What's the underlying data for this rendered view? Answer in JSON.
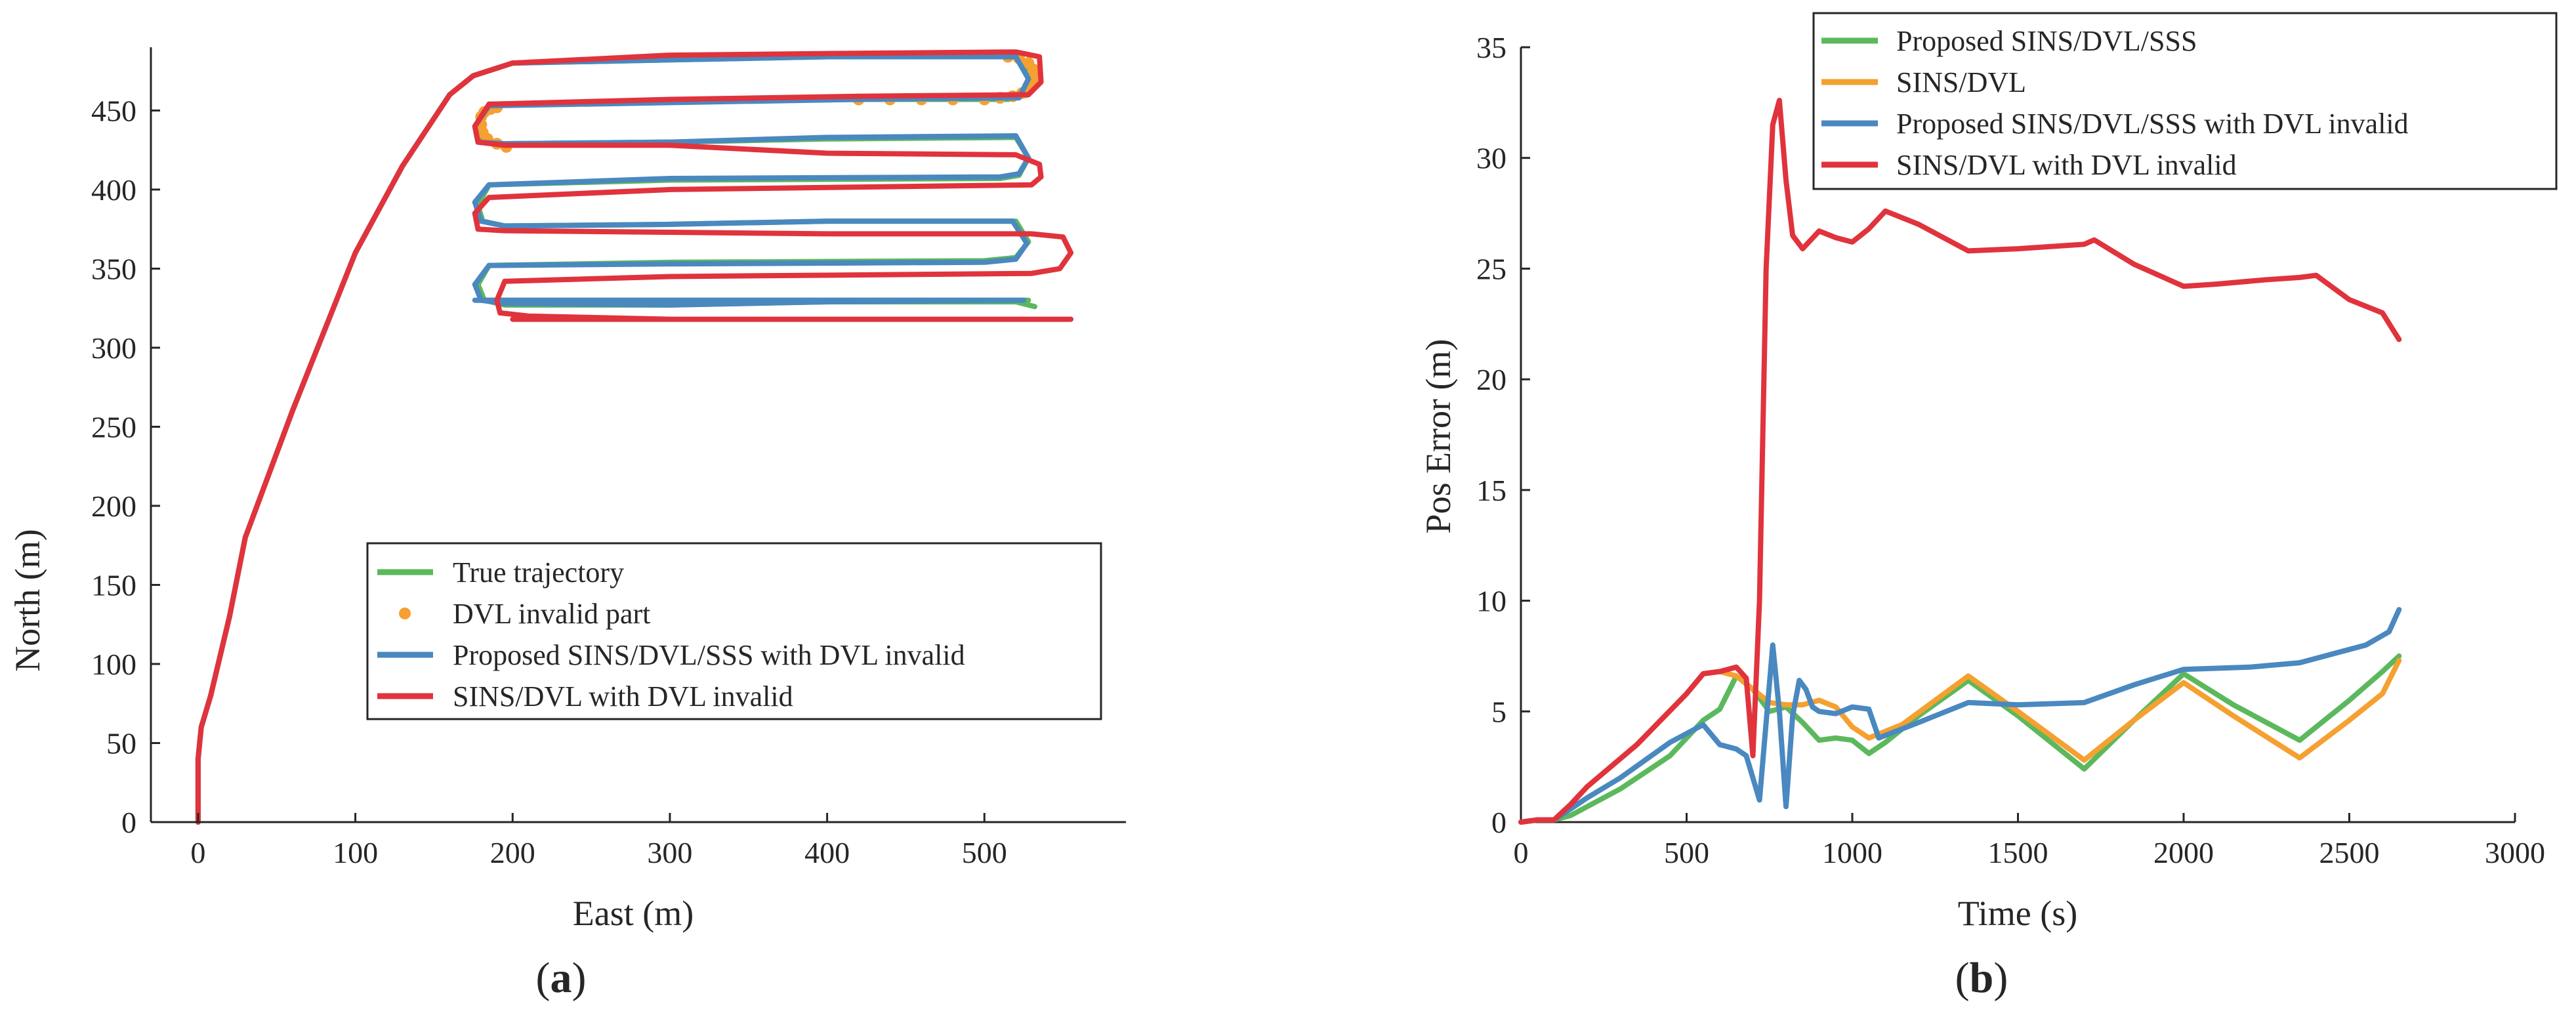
{
  "colors": {
    "true_trajectory": "#5cb85c",
    "dvl_invalid": "#f5a030",
    "proposed_invalid": "#4a88c0",
    "sins_dvl_invalid": "#e0333c",
    "proposed": "#5cb85c",
    "sins_dvl": "#f5a030",
    "axis": "#262626"
  },
  "panels": {
    "a": {
      "prefix": "(",
      "letter": "a",
      "suffix": ")"
    },
    "b": {
      "prefix": "(",
      "letter": "b",
      "suffix": ")"
    }
  },
  "chart_data": [
    {
      "id": "a",
      "type": "line",
      "title": "",
      "xlabel": "East (m)",
      "ylabel": "North (m)",
      "xlim": [
        -30,
        590
      ],
      "ylim": [
        0,
        490
      ],
      "xticks": [
        0,
        100,
        200,
        300,
        400,
        500
      ],
      "yticks": [
        0,
        50,
        100,
        150,
        200,
        250,
        300,
        350,
        400,
        450
      ],
      "legend_position": "lower-right",
      "legend": [
        {
          "label": "True trajectory",
          "style": "line",
          "colorKey": "true_trajectory"
        },
        {
          "label": "DVL invalid part",
          "style": "dot",
          "colorKey": "dvl_invalid"
        },
        {
          "label": "Proposed SINS/DVL/SSS with DVL invalid",
          "style": "line",
          "colorKey": "proposed_invalid"
        },
        {
          "label": "SINS/DVL with DVL invalid",
          "style": "line",
          "colorKey": "sins_dvl_invalid"
        }
      ],
      "series": [
        {
          "name": "True trajectory",
          "colorKey": "true_trajectory",
          "x": [
            0,
            0,
            2,
            8,
            20,
            30,
            60,
            100,
            130,
            160,
            175,
            200,
            300,
            400,
            520,
            530,
            528,
            515,
            420,
            300,
            185,
            178,
            180,
            195,
            300,
            400,
            520,
            528,
            522,
            510,
            300,
            185,
            178,
            181,
            195,
            300,
            400,
            520,
            528,
            520,
            500,
            300,
            185,
            178,
            182,
            195,
            300,
            400,
            520,
            528,
            520,
            500,
            300,
            185,
            178,
            182,
            195,
            300,
            400,
            520,
            532
          ],
          "y": [
            0,
            40,
            60,
            80,
            130,
            180,
            260,
            360,
            415,
            460,
            472,
            480,
            482,
            484,
            484,
            472,
            460,
            457,
            457,
            456,
            454,
            440,
            430,
            429,
            430,
            432,
            433,
            420,
            409,
            407,
            406,
            403,
            390,
            380,
            377,
            378,
            380,
            380,
            367,
            357,
            355,
            354,
            352,
            340,
            330,
            327,
            327,
            329,
            330,
            330,
            330,
            330,
            330,
            330,
            330,
            330,
            330,
            330,
            329,
            329,
            326
          ]
        },
        {
          "name": "DVL invalid part",
          "colorKey": "dvl_invalid",
          "style": "dots",
          "x": [
            420,
            440,
            460,
            480,
            500,
            510,
            518,
            524,
            528,
            531,
            532,
            531,
            528,
            522,
            515,
            190,
            186,
            182,
            180,
            180,
            181,
            184,
            190,
            196
          ],
          "y": [
            457,
            457,
            457,
            457,
            457,
            458,
            459,
            461,
            464,
            468,
            472,
            476,
            480,
            483,
            484,
            452,
            451,
            449,
            446,
            441,
            436,
            432,
            429,
            427
          ]
        },
        {
          "name": "Proposed SINS/DVL/SSS with DVL invalid",
          "colorKey": "proposed_invalid",
          "x": [
            0,
            0,
            2,
            8,
            20,
            30,
            60,
            100,
            130,
            160,
            175,
            200,
            300,
            400,
            520,
            528,
            522,
            420,
            300,
            185,
            176,
            178,
            195,
            300,
            400,
            520,
            528,
            522,
            510,
            300,
            185,
            176,
            180,
            195,
            300,
            400,
            518,
            527,
            520,
            500,
            300,
            185,
            176,
            180,
            195,
            300,
            400,
            515,
            525,
            520,
            500,
            300,
            185,
            176,
            180,
            195,
            300,
            400,
            515,
            525
          ],
          "y": [
            0,
            40,
            60,
            80,
            130,
            180,
            260,
            360,
            415,
            460,
            472,
            480,
            482,
            484,
            484,
            470,
            458,
            457,
            455,
            453,
            440,
            430,
            429,
            430,
            433,
            434,
            420,
            410,
            408,
            407,
            403,
            392,
            380,
            377,
            378,
            380,
            380,
            366,
            356,
            354,
            353,
            352,
            340,
            330,
            328,
            327,
            329,
            330,
            330,
            330,
            330,
            330,
            330,
            330,
            330,
            330,
            329,
            329,
            330,
            330
          ]
        },
        {
          "name": "SINS/DVL with DVL invalid",
          "colorKey": "sins_dvl_invalid",
          "x": [
            0,
            0,
            2,
            8,
            20,
            30,
            60,
            100,
            130,
            160,
            175,
            200,
            300,
            400,
            520,
            535,
            536,
            528,
            420,
            300,
            185,
            176,
            178,
            195,
            300,
            400,
            520,
            535,
            536,
            530,
            300,
            185,
            176,
            178,
            195,
            300,
            400,
            530,
            550,
            555,
            548,
            530,
            300,
            195,
            190,
            192,
            210,
            300,
            400,
            530,
            552,
            555,
            548,
            300,
            205,
            200,
            205,
            230,
            300,
            400,
            530,
            545
          ],
          "y": [
            0,
            40,
            60,
            80,
            130,
            180,
            260,
            360,
            415,
            460,
            472,
            480,
            485,
            486,
            487,
            484,
            468,
            460,
            459,
            457,
            454,
            440,
            430,
            428,
            428,
            423,
            422,
            416,
            408,
            403,
            400,
            395,
            385,
            375,
            374,
            373,
            372,
            372,
            370,
            360,
            350,
            347,
            345,
            342,
            330,
            322,
            320,
            318,
            318,
            318,
            318,
            318,
            318,
            318,
            318,
            318,
            318,
            318,
            318,
            318,
            318,
            318
          ]
        }
      ]
    },
    {
      "id": "b",
      "type": "line",
      "title": "",
      "xlabel": "Time (s)",
      "ylabel": "Pos Error (m)",
      "xlim": [
        0,
        3000
      ],
      "ylim": [
        0,
        35
      ],
      "xticks": [
        0,
        500,
        1000,
        1500,
        2000,
        2500,
        3000
      ],
      "yticks": [
        0,
        5,
        10,
        15,
        20,
        25,
        30,
        35
      ],
      "legend_position": "top-right",
      "legend": [
        {
          "label": "Proposed SINS/DVL/SSS",
          "style": "line",
          "colorKey": "proposed"
        },
        {
          "label": "SINS/DVL",
          "style": "line",
          "colorKey": "sins_dvl"
        },
        {
          "label": "Proposed SINS/DVL/SSS with DVL invalid",
          "style": "line",
          "colorKey": "proposed_invalid"
        },
        {
          "label": "SINS/DVL with DVL invalid",
          "style": "line",
          "colorKey": "sins_dvl_invalid"
        }
      ],
      "series": [
        {
          "name": "Proposed SINS/DVL/SSS",
          "colorKey": "proposed",
          "x": [
            0,
            50,
            100,
            150,
            200,
            300,
            450,
            550,
            600,
            650,
            700,
            750,
            800,
            850,
            900,
            950,
            1000,
            1050,
            1100,
            1200,
            1350,
            1500,
            1700,
            1850,
            2000,
            2150,
            2350,
            2500,
            2600,
            2650
          ],
          "y": [
            0,
            0.1,
            0.1,
            0.3,
            0.7,
            1.5,
            3.0,
            4.6,
            5.1,
            6.6,
            6.0,
            5.0,
            5.2,
            4.5,
            3.7,
            3.8,
            3.7,
            3.1,
            3.6,
            4.8,
            6.4,
            4.8,
            2.4,
            4.6,
            6.7,
            5.3,
            3.7,
            5.5,
            6.8,
            7.5
          ]
        },
        {
          "name": "SINS/DVL",
          "colorKey": "sins_dvl",
          "x": [
            0,
            50,
            100,
            150,
            200,
            350,
            500,
            550,
            600,
            650,
            700,
            750,
            800,
            850,
            900,
            950,
            1000,
            1050,
            1150,
            1350,
            1500,
            1700,
            1850,
            2000,
            2150,
            2350,
            2500,
            2600,
            2650
          ],
          "y": [
            0,
            0.1,
            0.1,
            0.8,
            1.6,
            3.5,
            5.8,
            6.7,
            6.8,
            6.6,
            6.0,
            5.4,
            5.3,
            5.3,
            5.5,
            5.2,
            4.3,
            3.8,
            4.4,
            6.6,
            5.0,
            2.8,
            4.6,
            6.3,
            4.8,
            2.9,
            4.6,
            5.8,
            7.3
          ]
        },
        {
          "name": "Proposed SINS/DVL/SSS with DVL invalid",
          "colorKey": "proposed_invalid",
          "x": [
            0,
            50,
            100,
            150,
            200,
            300,
            450,
            550,
            600,
            650,
            680,
            700,
            720,
            740,
            760,
            780,
            800,
            820,
            840,
            860,
            880,
            900,
            950,
            1000,
            1050,
            1080,
            1200,
            1350,
            1500,
            1700,
            1850,
            2000,
            2200,
            2350,
            2450,
            2550,
            2620,
            2650
          ],
          "y": [
            0,
            0.1,
            0.1,
            0.6,
            1.1,
            2.0,
            3.6,
            4.4,
            3.5,
            3.3,
            3.0,
            2.0,
            1.0,
            4.5,
            8.0,
            5.0,
            0.7,
            4.8,
            6.4,
            6.0,
            5.2,
            5.0,
            4.9,
            5.2,
            5.1,
            3.8,
            4.5,
            5.4,
            5.3,
            5.4,
            6.2,
            6.9,
            7.0,
            7.2,
            7.6,
            8.0,
            8.6,
            9.6
          ]
        },
        {
          "name": "SINS/DVL with DVL invalid",
          "colorKey": "sins_dvl_invalid",
          "x": [
            0,
            50,
            100,
            150,
            200,
            350,
            500,
            550,
            600,
            650,
            680,
            700,
            720,
            740,
            760,
            780,
            800,
            820,
            850,
            900,
            950,
            1000,
            1050,
            1100,
            1200,
            1350,
            1500,
            1700,
            1730,
            1850,
            2000,
            2100,
            2250,
            2350,
            2400,
            2500,
            2600,
            2650
          ],
          "y": [
            0,
            0.1,
            0.1,
            0.8,
            1.6,
            3.5,
            5.8,
            6.7,
            6.8,
            7.0,
            6.5,
            3.0,
            10.0,
            25.0,
            31.5,
            32.6,
            29.0,
            26.5,
            25.9,
            26.7,
            26.4,
            26.2,
            26.8,
            27.6,
            27.0,
            25.8,
            25.9,
            26.1,
            26.3,
            25.2,
            24.2,
            24.3,
            24.5,
            24.6,
            24.7,
            23.6,
            23.0,
            21.8
          ]
        }
      ]
    }
  ]
}
